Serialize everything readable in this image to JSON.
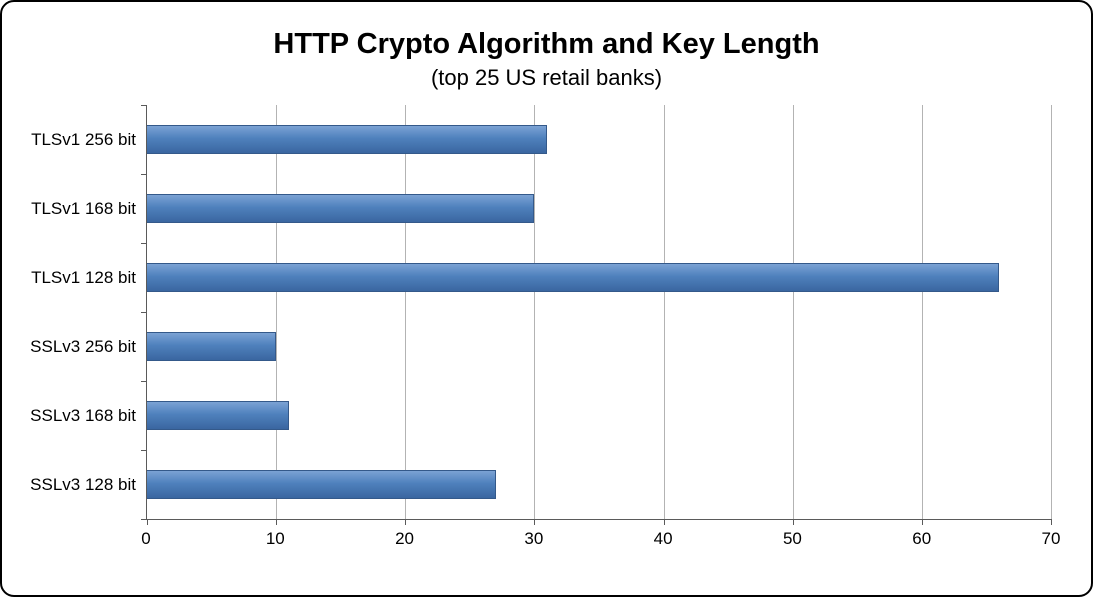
{
  "chart_data": {
    "type": "bar",
    "orientation": "horizontal",
    "title": "HTTP Crypto Algorithm and Key Length",
    "subtitle": "(top 25 US retail banks)",
    "categories": [
      "TLSv1 256 bit",
      "TLSv1 168 bit",
      "TLSv1 128 bit",
      "SSLv3 256 bit",
      "SSLv3 168 bit",
      "SSLv3 128 bit"
    ],
    "values": [
      31,
      30,
      66,
      10,
      11,
      27
    ],
    "xlabel": "",
    "ylabel": "",
    "xlim": [
      0,
      70
    ],
    "xticks": [
      0,
      10,
      20,
      30,
      40,
      50,
      60,
      70
    ],
    "grid": true,
    "legend": "none",
    "bar_color": "#4f81bd",
    "axis_color": "#5a5a5a",
    "gridline_color": "#b3b3b3"
  }
}
